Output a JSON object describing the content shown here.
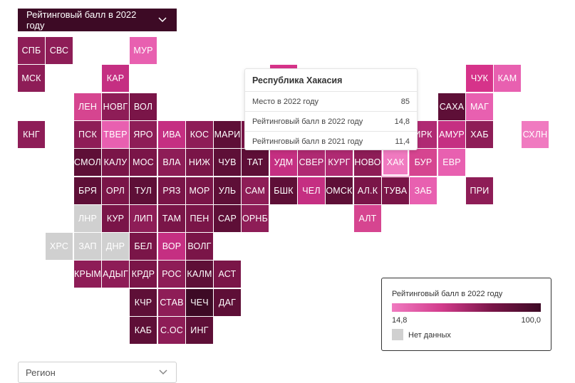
{
  "top_dropdown": {
    "label": "Рейтинговый балл в 2022 году"
  },
  "tooltip": {
    "title": "Республика Хакасия",
    "rows": [
      {
        "label": "Место в 2022 году",
        "value": "85"
      },
      {
        "label": "Рейтинговый балл в 2022 году",
        "value": "14,8"
      },
      {
        "label": "Рейтинговый балл в 2021 году",
        "value": "11,4"
      }
    ]
  },
  "legend": {
    "title": "Рейтинговый балл в 2022 году",
    "min": "14,8",
    "max": "100,0",
    "no_data_label": "Нет данных",
    "colors": {
      "low": "#f07ac0",
      "high": "#3d0a25",
      "no_data": "#d0d0d0"
    }
  },
  "bottom_dropdown": {
    "placeholder": "Регион"
  },
  "map": {
    "highlighted": "ХАК",
    "regions": [
      {
        "code": "СПБ",
        "col": 0,
        "row": 0,
        "color": "#8e1d57"
      },
      {
        "code": "СВС",
        "col": 1,
        "row": 0,
        "color": "#8e1d57"
      },
      {
        "code": "МУР",
        "col": 4,
        "row": 0,
        "color": "#e860b0"
      },
      {
        "code": "МСК",
        "col": 0,
        "row": 1,
        "color": "#8e1d57"
      },
      {
        "code": "КАР",
        "col": 3,
        "row": 1,
        "color": "#c52f82"
      },
      {
        "code": "",
        "col": 9,
        "row": 1,
        "color": "#d6338a"
      },
      {
        "code": "ЧУК",
        "col": 16,
        "row": 1,
        "color": "#d6338a"
      },
      {
        "code": "КАМ",
        "col": 17,
        "row": 1,
        "color": "#e860b0"
      },
      {
        "code": "ЛЕН",
        "col": 2,
        "row": 2,
        "color": "#d64590"
      },
      {
        "code": "НОВГ",
        "col": 3,
        "row": 2,
        "color": "#8e1d57"
      },
      {
        "code": "ВОЛ",
        "col": 4,
        "row": 2,
        "color": "#7a1548"
      },
      {
        "code": "САХА",
        "col": 15,
        "row": 2,
        "color": "#5e0f37"
      },
      {
        "code": "МАГ",
        "col": 16,
        "row": 2,
        "color": "#e860b0"
      },
      {
        "code": "КНГ",
        "col": 0,
        "row": 3,
        "color": "#8e1d57"
      },
      {
        "code": "ПСК",
        "col": 2,
        "row": 3,
        "color": "#8e1d57"
      },
      {
        "code": "ТВЕР",
        "col": 3,
        "row": 3,
        "color": "#e860b0"
      },
      {
        "code": "ЯРО",
        "col": 4,
        "row": 3,
        "color": "#8e1d57"
      },
      {
        "code": "ИВА",
        "col": 5,
        "row": 3,
        "color": "#c52f82"
      },
      {
        "code": "КОС",
        "col": 6,
        "row": 3,
        "color": "#8e1d57"
      },
      {
        "code": "МАРИ",
        "col": 7,
        "row": 3,
        "color": "#5e0f37"
      },
      {
        "code": "",
        "col": 8,
        "row": 3,
        "color": "#7a1548"
      },
      {
        "code": "ИРК",
        "col": 14,
        "row": 3,
        "color": "#b02a73"
      },
      {
        "code": "АМУР",
        "col": 15,
        "row": 3,
        "color": "#c52f82"
      },
      {
        "code": "ХАБ",
        "col": 16,
        "row": 3,
        "color": "#8e1d57"
      },
      {
        "code": "СХЛН",
        "col": 18,
        "row": 3,
        "color": "#f07ac0"
      },
      {
        "code": "СМОЛ",
        "col": 2,
        "row": 4,
        "color": "#5e0f37"
      },
      {
        "code": "КАЛУ",
        "col": 3,
        "row": 4,
        "color": "#7a1548"
      },
      {
        "code": "МОС",
        "col": 4,
        "row": 4,
        "color": "#7a1548"
      },
      {
        "code": "ВЛА",
        "col": 5,
        "row": 4,
        "color": "#8e1d57"
      },
      {
        "code": "НИЖ",
        "col": 6,
        "row": 4,
        "color": "#7a1548"
      },
      {
        "code": "ЧУВ",
        "col": 7,
        "row": 4,
        "color": "#5e0f37"
      },
      {
        "code": "ТАТ",
        "col": 8,
        "row": 4,
        "color": "#5e0f37"
      },
      {
        "code": "УДМ",
        "col": 9,
        "row": 4,
        "color": "#c52f82"
      },
      {
        "code": "СВЕР",
        "col": 10,
        "row": 4,
        "color": "#b02a73"
      },
      {
        "code": "КУРГ",
        "col": 11,
        "row": 4,
        "color": "#b02a73"
      },
      {
        "code": "НОВО",
        "col": 12,
        "row": 4,
        "color": "#8e1d57"
      },
      {
        "code": "ХАК",
        "col": 13,
        "row": 4,
        "color": "#f07ac0"
      },
      {
        "code": "БУР",
        "col": 14,
        "row": 4,
        "color": "#d64590"
      },
      {
        "code": "ЕВР",
        "col": 15,
        "row": 4,
        "color": "#e860b0"
      },
      {
        "code": "БРЯ",
        "col": 2,
        "row": 5,
        "color": "#5e0f37"
      },
      {
        "code": "ОРЛ",
        "col": 3,
        "row": 5,
        "color": "#7a1548"
      },
      {
        "code": "ТУЛ",
        "col": 4,
        "row": 5,
        "color": "#5e0f37"
      },
      {
        "code": "РЯЗ",
        "col": 5,
        "row": 5,
        "color": "#7a1548"
      },
      {
        "code": "МОР",
        "col": 6,
        "row": 5,
        "color": "#7a1548"
      },
      {
        "code": "УЛЬ",
        "col": 7,
        "row": 5,
        "color": "#5e0f37"
      },
      {
        "code": "САМ",
        "col": 8,
        "row": 5,
        "color": "#8e1d57"
      },
      {
        "code": "БШК",
        "col": 9,
        "row": 5,
        "color": "#5e0f37"
      },
      {
        "code": "ЧЕЛ",
        "col": 10,
        "row": 5,
        "color": "#c52f82"
      },
      {
        "code": "ОМСК",
        "col": 11,
        "row": 5,
        "color": "#5e0f37"
      },
      {
        "code": "АЛ.К",
        "col": 12,
        "row": 5,
        "color": "#7a1548"
      },
      {
        "code": "ТУВА",
        "col": 13,
        "row": 5,
        "color": "#7a1548"
      },
      {
        "code": "ЗАБ",
        "col": 14,
        "row": 5,
        "color": "#e860b0"
      },
      {
        "code": "ПРИ",
        "col": 16,
        "row": 5,
        "color": "#8e1d57"
      },
      {
        "code": "ЛНР",
        "col": 2,
        "row": 6,
        "color": "#d0d0d0"
      },
      {
        "code": "КУР",
        "col": 3,
        "row": 6,
        "color": "#7a1548"
      },
      {
        "code": "ЛИП",
        "col": 4,
        "row": 6,
        "color": "#8e1d57"
      },
      {
        "code": "ТАМ",
        "col": 5,
        "row": 6,
        "color": "#7a1548"
      },
      {
        "code": "ПЕН",
        "col": 6,
        "row": 6,
        "color": "#7a1548"
      },
      {
        "code": "САР",
        "col": 7,
        "row": 6,
        "color": "#5e0f37"
      },
      {
        "code": "ОРНБ",
        "col": 8,
        "row": 6,
        "color": "#8e1d57"
      },
      {
        "code": "АЛТ",
        "col": 12,
        "row": 6,
        "color": "#d64590"
      },
      {
        "code": "ХРС",
        "col": 1,
        "row": 7,
        "color": "#d0d0d0"
      },
      {
        "code": "ЗАП",
        "col": 2,
        "row": 7,
        "color": "#d0d0d0"
      },
      {
        "code": "ДНР",
        "col": 3,
        "row": 7,
        "color": "#d0d0d0"
      },
      {
        "code": "БЕЛ",
        "col": 4,
        "row": 7,
        "color": "#7a1548"
      },
      {
        "code": "ВОР",
        "col": 5,
        "row": 7,
        "color": "#c52f82"
      },
      {
        "code": "ВОЛГ",
        "col": 6,
        "row": 7,
        "color": "#7a1548"
      },
      {
        "code": "КРЫМ",
        "col": 2,
        "row": 8,
        "color": "#8e1d57"
      },
      {
        "code": "АДЫГ",
        "col": 3,
        "row": 8,
        "color": "#8e1d57"
      },
      {
        "code": "КРДР",
        "col": 4,
        "row": 8,
        "color": "#7a1548"
      },
      {
        "code": "РОС",
        "col": 5,
        "row": 8,
        "color": "#8e1d57"
      },
      {
        "code": "КАЛМ",
        "col": 6,
        "row": 8,
        "color": "#5e0f37"
      },
      {
        "code": "АСТ",
        "col": 7,
        "row": 8,
        "color": "#7a1548"
      },
      {
        "code": "КЧР",
        "col": 4,
        "row": 9,
        "color": "#5e0f37"
      },
      {
        "code": "СТАВ",
        "col": 5,
        "row": 9,
        "color": "#8e1d57"
      },
      {
        "code": "ЧЕЧ",
        "col": 6,
        "row": 9,
        "color": "#3d0a25"
      },
      {
        "code": "ДАГ",
        "col": 7,
        "row": 9,
        "color": "#5e0f37"
      },
      {
        "code": "КАБ",
        "col": 4,
        "row": 10,
        "color": "#5e0f37"
      },
      {
        "code": "С.ОС",
        "col": 5,
        "row": 10,
        "color": "#8e1d57"
      },
      {
        "code": "ИНГ",
        "col": 6,
        "row": 10,
        "color": "#5e0f37"
      }
    ]
  }
}
